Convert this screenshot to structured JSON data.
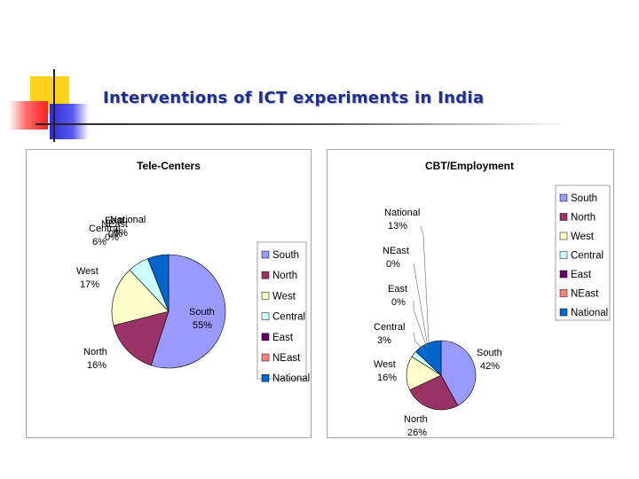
{
  "slide": {
    "title": "Interventions of ICT experiments in India"
  },
  "chart_data": [
    {
      "type": "pie",
      "title": "Tele-Centers",
      "categories": [
        "South",
        "North",
        "West",
        "Central",
        "East",
        "NEast",
        "National"
      ],
      "values": [
        55,
        16,
        17,
        6,
        0,
        0,
        6
      ],
      "value_labels": [
        "55%",
        "16%",
        "17%",
        "6%",
        "0%",
        "0%",
        "6%"
      ],
      "colors": [
        "#9999ff",
        "#993366",
        "#ffffcc",
        "#ccffff",
        "#660066",
        "#ff8080",
        "#0066cc"
      ],
      "legend": {
        "position": "right",
        "entries": [
          "South",
          "North",
          "West",
          "Central",
          "East",
          "NEast",
          "National"
        ]
      }
    },
    {
      "type": "pie",
      "title": "CBT/Employment",
      "categories": [
        "South",
        "North",
        "West",
        "Central",
        "East",
        "NEast",
        "National"
      ],
      "values": [
        42,
        26,
        16,
        3,
        0,
        0,
        13
      ],
      "value_labels": [
        "42%",
        "26%",
        "16%",
        "3%",
        "0%",
        "0%",
        "13%"
      ],
      "colors": [
        "#9999ff",
        "#993366",
        "#ffffcc",
        "#ccffff",
        "#660066",
        "#ff8080",
        "#0066cc"
      ],
      "legend": {
        "position": "top-right",
        "entries": [
          "South",
          "North",
          "West",
          "Central",
          "East",
          "NEast",
          "National"
        ]
      }
    }
  ]
}
